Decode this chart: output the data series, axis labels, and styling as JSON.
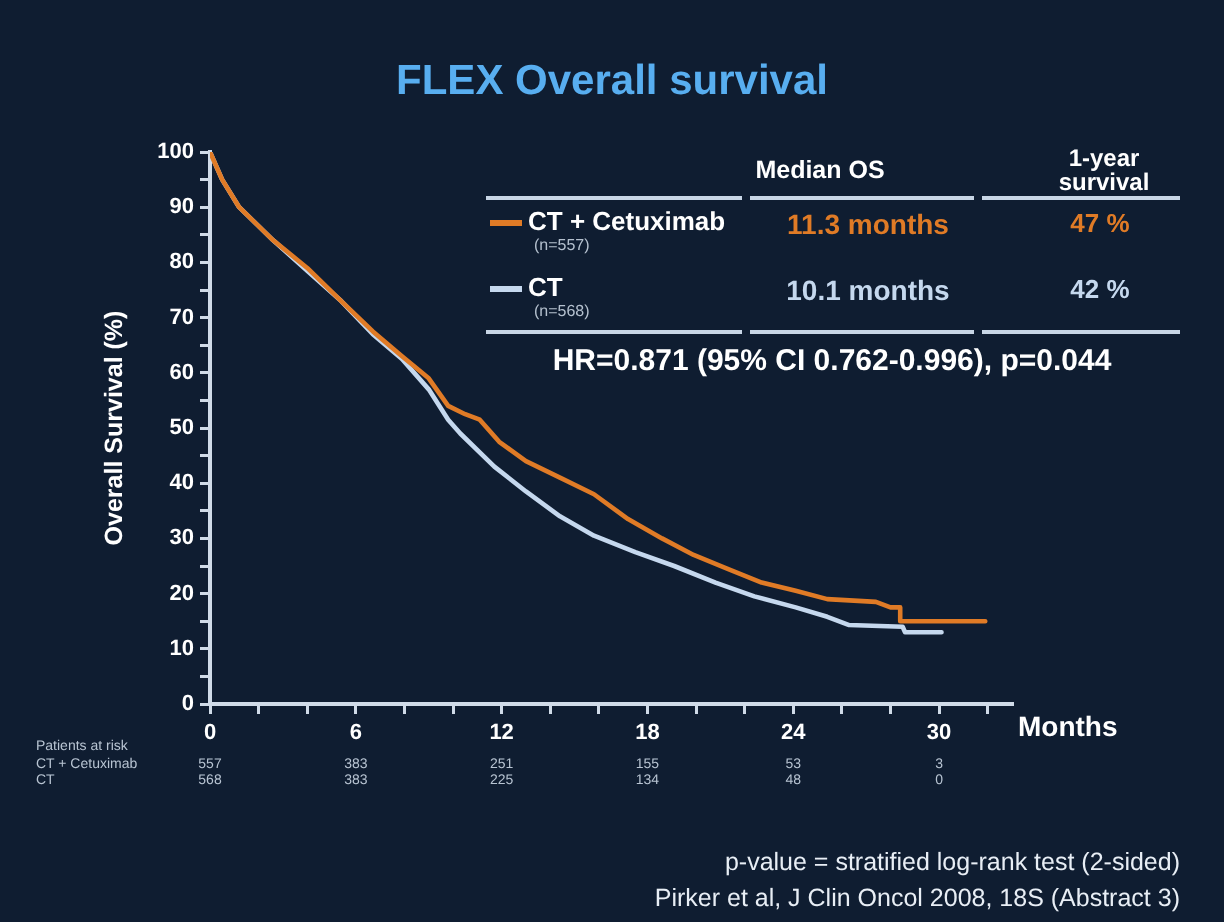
{
  "chart_data": {
    "type": "line",
    "title": "FLEX Overall survival",
    "xlabel": "Months",
    "ylabel": "Overall Survival (%)",
    "xlim": [
      0,
      33
    ],
    "ylim": [
      0,
      100
    ],
    "xticks": [
      0,
      {
        "value": 2,
        "label": null
      },
      {
        "value": 4,
        "label": null
      },
      6,
      {
        "value": 8,
        "label": null
      },
      {
        "value": 10,
        "label": null
      },
      12,
      {
        "value": 14,
        "label": null
      },
      {
        "value": 16,
        "label": null
      },
      18,
      {
        "value": 20,
        "label": null
      },
      {
        "value": 22,
        "label": null
      },
      24,
      {
        "value": 26,
        "label": null
      },
      {
        "value": 28,
        "label": null
      },
      30,
      {
        "value": 32,
        "label": null
      }
    ],
    "yticks": [
      0,
      {
        "value": 5,
        "label": null
      },
      10,
      {
        "value": 15,
        "label": null
      },
      20,
      {
        "value": 25,
        "label": null
      },
      30,
      {
        "value": 35,
        "label": null
      },
      40,
      {
        "value": 45,
        "label": null
      },
      50,
      {
        "value": 55,
        "label": null
      },
      60,
      {
        "value": 65,
        "label": null
      },
      70,
      {
        "value": 75,
        "label": null
      },
      80,
      {
        "value": 85,
        "label": null
      },
      90,
      {
        "value": 95,
        "label": null
      },
      100
    ],
    "legend": "top right",
    "series": [
      {
        "name": "CT + Cetuximab",
        "color": "#e07b26",
        "x": [
          0,
          0.5,
          1.2,
          2.6,
          4.0,
          5.4,
          6.7,
          7.9,
          9.0,
          9.8,
          10.5,
          11.1,
          11.9,
          13.0,
          14.4,
          15.8,
          17.2,
          18.6,
          19.9,
          21.3,
          22.7,
          24.1,
          25.4,
          27.4,
          28.0,
          28.4,
          28.4,
          31.9
        ],
        "values": [
          100,
          95,
          90,
          84,
          79,
          73,
          67.5,
          63,
          59,
          54,
          52.5,
          51.5,
          47.5,
          44,
          41,
          38,
          33.5,
          30,
          27,
          24.5,
          22,
          20.5,
          19,
          18.5,
          17.5,
          17.5,
          15,
          15
        ]
      },
      {
        "name": "CT",
        "color": "#c5d8ee",
        "x": [
          0,
          0.5,
          1.2,
          2.6,
          4.0,
          5.4,
          6.7,
          7.9,
          9.0,
          9.8,
          10.3,
          11.7,
          13.0,
          14.4,
          15.8,
          17.5,
          19.1,
          20.8,
          22.4,
          24.1,
          25.4,
          26.3,
          28.5,
          28.6,
          30.1
        ],
        "values": [
          100,
          95,
          90,
          84,
          78.5,
          73,
          67,
          62.5,
          57,
          51.5,
          49,
          43,
          38.5,
          34,
          30.5,
          27.5,
          25,
          22,
          19.5,
          17.5,
          15.8,
          14.3,
          14,
          13,
          13
        ]
      }
    ],
    "annotations": [
      "Median OS",
      "1-year survival",
      "(n=557)",
      "11.3 months",
      "47 %",
      "(n=568)",
      "10.1 months",
      "42 %",
      "HR=0.871 (95% CI 0.762-0.996), p=0.044",
      "Patients at risk",
      "557",
      "383",
      "251",
      "155",
      "53",
      "3",
      "568",
      "383",
      "225",
      "134",
      "48",
      "0",
      "p-value = stratified log-rank test (2-sided)",
      "Pirker et al, J Clin Oncol 2008, 18S (Abstract 3)"
    ]
  }
}
